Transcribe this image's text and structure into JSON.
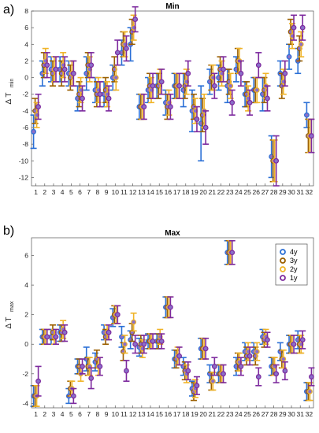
{
  "panels": {
    "a": {
      "label": "a)"
    },
    "b": {
      "label": "b)"
    }
  },
  "colors": {
    "4y": "#2a6fd6",
    "3y": "#9a5f00",
    "2y": "#f0b428",
    "1y": "#7d2a9e",
    "face": "#8a6fc8"
  },
  "chart_data": [
    {
      "type": "scatter",
      "title": "Min",
      "ylabel_main": "Δ T",
      "ylabel_sub": "min",
      "x": [
        1,
        2,
        3,
        4,
        5,
        6,
        7,
        8,
        9,
        10,
        11,
        12,
        13,
        14,
        15,
        16,
        17,
        18,
        19,
        20,
        21,
        22,
        23,
        24,
        25,
        26,
        27,
        28,
        29,
        30,
        31,
        32
      ],
      "ylim": [
        -13,
        8
      ],
      "yticks": [
        -12,
        -10,
        -8,
        -6,
        -4,
        -2,
        0,
        2,
        4,
        6,
        8
      ],
      "legend": [],
      "series": [
        {
          "name": "4y",
          "values": [
            -6.5,
            0.5,
            1,
            1,
            0.5,
            -2.5,
            0.5,
            -1.5,
            -2,
            0,
            3,
            4,
            -3.5,
            -1.5,
            -1,
            -3,
            -1,
            -1.5,
            -4,
            -5.5,
            -0.5,
            0,
            -1,
            1,
            -2,
            -1.5,
            -2,
            -9.5,
            0.5,
            2.5,
            2,
            -4.5
          ],
          "lo": [
            -8.5,
            -1,
            -0.5,
            -0.5,
            -1,
            -4,
            -1.5,
            -3,
            -3.5,
            -1.5,
            1.5,
            2,
            -5,
            -3,
            -2.5,
            -4.5,
            -2.5,
            -3.5,
            -6.5,
            -10,
            -2,
            -1.5,
            -3,
            -0.5,
            -3.5,
            -3,
            -4,
            -12,
            -1,
            1,
            0.5,
            -6
          ],
          "hi": [
            -4.5,
            2,
            2.5,
            2.5,
            2,
            -1,
            2.5,
            0,
            -0.5,
            1.5,
            4.5,
            6,
            -2,
            0,
            0.5,
            -1.5,
            0.5,
            0.5,
            -1.5,
            -1,
            1,
            1.5,
            1,
            2.5,
            -0.5,
            0,
            0,
            -7,
            2,
            4,
            3.5,
            -3
          ]
        },
        {
          "name": "3y",
          "values": [
            -4,
            1.5,
            0.5,
            0.5,
            0,
            -2,
            1.5,
            -2,
            -1.5,
            1,
            4,
            5.5,
            -3.5,
            -1,
            -1,
            -3.5,
            -1,
            -1,
            -3.5,
            -4.5,
            0,
            1,
            -0.5,
            2,
            -2,
            -1.5,
            -1.5,
            -10,
            -1,
            5.5,
            3.5,
            -7
          ],
          "lo": [
            -5.5,
            0,
            -1,
            -1,
            -1.5,
            -3.5,
            0,
            -3.5,
            -3,
            -0.5,
            2.5,
            4,
            -5,
            -2.5,
            -2.5,
            -5,
            -2.5,
            -2.5,
            -5,
            -6.5,
            -1.5,
            -0.5,
            -2,
            0.5,
            -3.5,
            -3,
            -3,
            -12.5,
            -2.5,
            4,
            2,
            -9
          ],
          "hi": [
            -2.5,
            3,
            2,
            2,
            1.5,
            -0.5,
            3,
            -0.5,
            0,
            2.5,
            5.5,
            7,
            -2,
            0.5,
            0.5,
            -2,
            0.5,
            0.5,
            -2,
            -2.5,
            1.5,
            2.5,
            1,
            3.5,
            -0.5,
            0,
            0,
            -7.5,
            0.5,
            7,
            5,
            -5
          ]
        },
        {
          "name": "2y",
          "values": [
            -4.5,
            2,
            1,
            1.5,
            0.5,
            -1.5,
            1,
            -1.5,
            -2,
            0,
            4,
            6,
            -3.5,
            -1.5,
            -0.5,
            -3,
            -1,
            -0.5,
            -4,
            -4,
            0,
            0.5,
            -1,
            2,
            -2.5,
            -1.5,
            -1,
            -10,
            -0.5,
            5,
            4,
            -7
          ],
          "lo": [
            -6,
            0.5,
            -0.5,
            0,
            -1,
            -3,
            -0.5,
            -3,
            -3.5,
            -1.5,
            2.5,
            4.5,
            -5,
            -3,
            -2,
            -4.5,
            -2.5,
            -2,
            -5.5,
            -6,
            -1.5,
            -1,
            -2.5,
            0.5,
            -4,
            -3,
            -2.5,
            -12.5,
            -2,
            3.5,
            2.5,
            -9
          ],
          "hi": [
            -3,
            3.5,
            2.5,
            3,
            2,
            0,
            2.5,
            0,
            -0.5,
            1.5,
            5.5,
            7.5,
            -2,
            0,
            1,
            -1.5,
            0.5,
            1,
            -2.5,
            -2,
            1.5,
            2,
            0.5,
            3.5,
            -1,
            0,
            0.5,
            -7.5,
            1,
            6.5,
            5.5,
            -5
          ]
        },
        {
          "name": "1y",
          "values": [
            -3.5,
            1.5,
            1,
            1,
            0.5,
            -2.5,
            1.5,
            -2,
            -2.5,
            3,
            3.5,
            7,
            -3.5,
            -1,
            -0.5,
            -3.5,
            -1,
            0.5,
            -5,
            -6,
            -1,
            1,
            -3,
            0.5,
            -3,
            1.5,
            -2.5,
            -10,
            0.5,
            6,
            6,
            -7
          ],
          "lo": [
            -5,
            0,
            -0.5,
            -0.5,
            -1,
            -4,
            0,
            -3.5,
            -4,
            1.5,
            2,
            5.5,
            -5,
            -2.5,
            -2,
            -5,
            -2.5,
            -1,
            -6.5,
            -8,
            -2.5,
            -0.5,
            -4.5,
            -1,
            -4.5,
            0,
            -4,
            -13,
            -1,
            4.5,
            4.5,
            -9
          ],
          "hi": [
            -2,
            3,
            2.5,
            2.5,
            2,
            -1,
            3,
            -0.5,
            -1,
            4.5,
            5,
            8.5,
            -2,
            0.5,
            1,
            -2,
            0.5,
            2,
            -3.5,
            -4,
            0.5,
            2.5,
            -1.5,
            2,
            -1.5,
            3,
            -1,
            -7,
            2,
            7.5,
            7.5,
            -5
          ]
        }
      ]
    },
    {
      "type": "scatter",
      "title": "Max",
      "ylabel_main": "Δ T",
      "ylabel_sub": "max",
      "x": [
        1,
        2,
        3,
        4,
        5,
        6,
        7,
        8,
        9,
        10,
        11,
        12,
        13,
        14,
        15,
        16,
        17,
        18,
        19,
        20,
        21,
        22,
        23,
        24,
        25,
        26,
        27,
        28,
        29,
        30,
        31,
        32
      ],
      "ylim": [
        -4.3,
        7.2
      ],
      "yticks": [
        -4,
        -2,
        0,
        2,
        4,
        6
      ],
      "legend": [
        "4y",
        "3y",
        "2y",
        "1y"
      ],
      "legend_position": "top-right",
      "series": [
        {
          "name": "4y",
          "values": [
            -3.5,
            0.5,
            0.5,
            0.8,
            -3.5,
            -1.5,
            -1,
            -1.2,
            0.8,
            1.8,
            0.5,
            0.3,
            -0.2,
            0.2,
            0.2,
            2.5,
            -1,
            -1.5,
            -3,
            -0.3,
            -2,
            -2,
            6.2,
            -1.5,
            -0.5,
            -0.5,
            0.5,
            -1.5,
            -0.5,
            0,
            0.3,
            -3.2
          ],
          "lo": [
            -4.2,
            0,
            0,
            0.2,
            -4,
            -2,
            -1.8,
            -1.8,
            0.3,
            1.2,
            -0.2,
            -0.3,
            -0.8,
            -0.3,
            -0.3,
            1.8,
            -1.6,
            -2.1,
            -3.5,
            -1,
            -2.6,
            -2.6,
            5.4,
            -2.1,
            -1.1,
            -1.1,
            0,
            -2.1,
            -1.1,
            -0.6,
            -0.3,
            -3.8
          ],
          "hi": [
            -2.8,
            1,
            1,
            1.3,
            -3,
            -1,
            -0.2,
            -0.6,
            1.3,
            2.4,
            1.2,
            0.9,
            0.4,
            0.7,
            0.7,
            3.2,
            -0.4,
            -0.9,
            -2.5,
            0.4,
            -1.4,
            -1.4,
            7,
            -0.9,
            0.1,
            0.1,
            1,
            -0.9,
            0.1,
            0.6,
            0.9,
            -2.6
          ]
        },
        {
          "name": "3y",
          "values": [
            -3.5,
            0.5,
            0.8,
            0.8,
            -3,
            -1.5,
            -1.5,
            -1,
            0.5,
            2,
            -0.5,
            0.8,
            0,
            0.2,
            0.2,
            2.5,
            -1,
            -1.8,
            -3.2,
            -0.3,
            -2.5,
            -2,
            6.2,
            -1.2,
            -0.8,
            -0.8,
            0.3,
            -1.5,
            -1,
            0,
            0,
            -3.2
          ],
          "lo": [
            -4.2,
            0,
            0.3,
            0.2,
            -3.5,
            -2,
            -2.1,
            -1.6,
            0,
            1.4,
            -1.1,
            0.2,
            -0.6,
            -0.3,
            -0.3,
            1.8,
            -1.6,
            -2.4,
            -3.8,
            -1,
            -3.1,
            -2.6,
            5.4,
            -1.8,
            -1.4,
            -1.4,
            -0.2,
            -2.1,
            -1.6,
            -0.6,
            -0.6,
            -3.8
          ],
          "hi": [
            -2.8,
            1,
            1.3,
            1.3,
            -2.5,
            -1,
            -0.9,
            -0.4,
            1,
            2.6,
            0.1,
            1.4,
            0.6,
            0.7,
            0.7,
            3.2,
            -0.4,
            -1.2,
            -2.6,
            0.4,
            -1.9,
            -1.4,
            7,
            -0.6,
            -0.2,
            -0.2,
            0.8,
            -0.9,
            -0.4,
            0.6,
            0.6,
            -2.6
          ]
        },
        {
          "name": "2y",
          "values": [
            -3.5,
            0.5,
            0.5,
            1,
            -3,
            -2,
            -1.5,
            -1.5,
            0.8,
            2,
            0,
            1.5,
            -0.3,
            0.2,
            0.5,
            2.5,
            -0.8,
            -2,
            -3,
            -0.3,
            -2.5,
            -2,
            6.2,
            -1.2,
            -0.5,
            -0.5,
            0.5,
            -1.5,
            -1,
            0,
            0,
            -3.2
          ],
          "lo": [
            -4.2,
            0,
            0,
            0.4,
            -3.5,
            -2.5,
            -2.1,
            -2.1,
            0.3,
            1.4,
            -0.6,
            0.9,
            -0.9,
            -0.3,
            0,
            1.8,
            -1.4,
            -2.6,
            -3.6,
            -1,
            -3.1,
            -2.6,
            5.4,
            -1.8,
            -1.1,
            -1.1,
            0,
            -2.1,
            -1.6,
            -0.6,
            -0.6,
            -3.8
          ],
          "hi": [
            -2.8,
            1,
            1,
            1.6,
            -2.5,
            -1.5,
            -0.9,
            -0.9,
            1.3,
            2.6,
            0.6,
            2.1,
            0.3,
            0.7,
            1,
            3.2,
            -0.2,
            -1.4,
            -2.4,
            0.4,
            -1.9,
            -1.4,
            7,
            -0.6,
            0.1,
            0.1,
            1,
            -0.9,
            -0.4,
            0.6,
            0.6,
            -2.6
          ]
        },
        {
          "name": "1y",
          "values": [
            -2.5,
            0.5,
            0.5,
            0.8,
            -3.5,
            -1.5,
            -2.3,
            -1.5,
            0.8,
            2,
            -1.8,
            0,
            0,
            0.2,
            0.2,
            2.5,
            -0.8,
            -1.8,
            -2.8,
            -0.3,
            -1.5,
            -2,
            6.2,
            -1.5,
            -0.8,
            -2.2,
            0.3,
            -2,
            -1.8,
            0,
            0.3,
            -2.2
          ],
          "lo": [
            -3.5,
            0,
            0,
            0.2,
            -4,
            -2,
            -3,
            -2.1,
            0.3,
            1.4,
            -2.5,
            -0.6,
            -0.6,
            -0.3,
            -0.3,
            1.8,
            -1.4,
            -2.4,
            -3.4,
            -1,
            -2.1,
            -2.6,
            5.4,
            -2.1,
            -1.4,
            -2.8,
            -0.2,
            -2.6,
            -2.4,
            -0.6,
            -0.3,
            -2.8
          ],
          "hi": [
            -1.5,
            1,
            1,
            1.3,
            -3,
            -1,
            -1.6,
            -0.9,
            1.3,
            2.6,
            -1.1,
            0.6,
            0.6,
            0.7,
            0.7,
            3.2,
            -0.2,
            -1.2,
            -2.2,
            0.4,
            -0.9,
            -1.4,
            7,
            -0.9,
            -0.2,
            -1.6,
            0.8,
            -1.4,
            -1.2,
            0.6,
            0.9,
            -1.6
          ]
        }
      ]
    }
  ]
}
